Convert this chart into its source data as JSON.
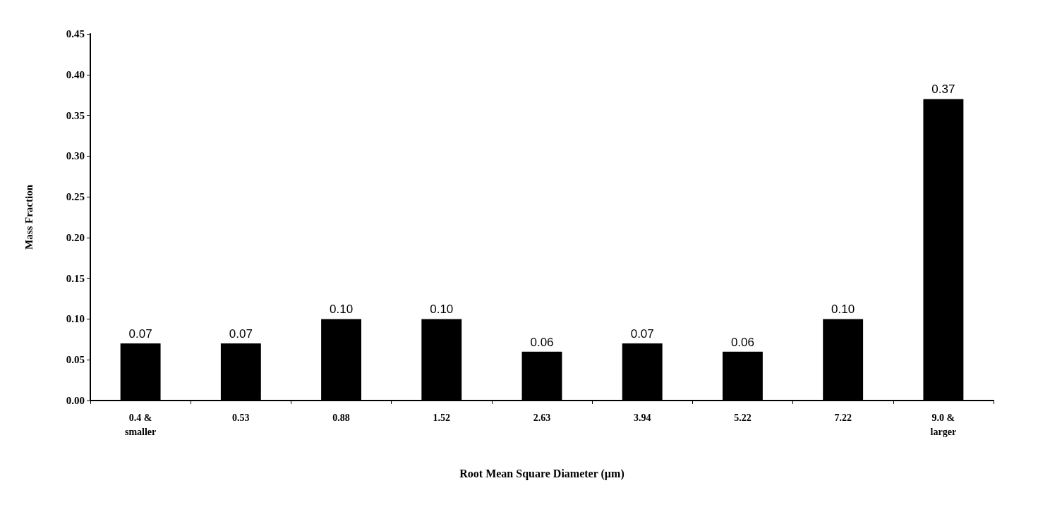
{
  "chart_data": {
    "type": "bar",
    "xlabel": "Root Mean Square Diameter (µm)",
    "ylabel": "Mass Fraction",
    "categories": [
      "0.4 &\nsmaller",
      "0.53",
      "0.88",
      "1.52",
      "2.63",
      "3.94",
      "5.22",
      "7.22",
      "9.0 &\nlarger"
    ],
    "values": [
      0.07,
      0.07,
      0.1,
      0.1,
      0.06,
      0.07,
      0.06,
      0.1,
      0.37
    ],
    "color": "#000000",
    "value_labels": [
      "0.07",
      "0.07",
      "0.10",
      "0.10",
      "0.06",
      "0.07",
      "0.06",
      "0.10",
      "0.37"
    ],
    "ylim": [
      0,
      0.45
    ],
    "yticks": [
      {
        "value": 0,
        "label": "0.00"
      },
      {
        "value": 0.05,
        "label": "0.05"
      },
      {
        "value": 0.1,
        "label": "0.10"
      },
      {
        "value": 0.15,
        "label": "0.15"
      },
      {
        "value": 0.2,
        "label": "0.20"
      },
      {
        "value": 0.25,
        "label": "0.25"
      },
      {
        "value": 0.3,
        "label": "0.30"
      },
      {
        "value": 0.35,
        "label": "0.35"
      },
      {
        "value": 0.4,
        "label": "0.40"
      },
      {
        "value": 0.45,
        "label": "0.45"
      }
    ],
    "grid": false
  }
}
